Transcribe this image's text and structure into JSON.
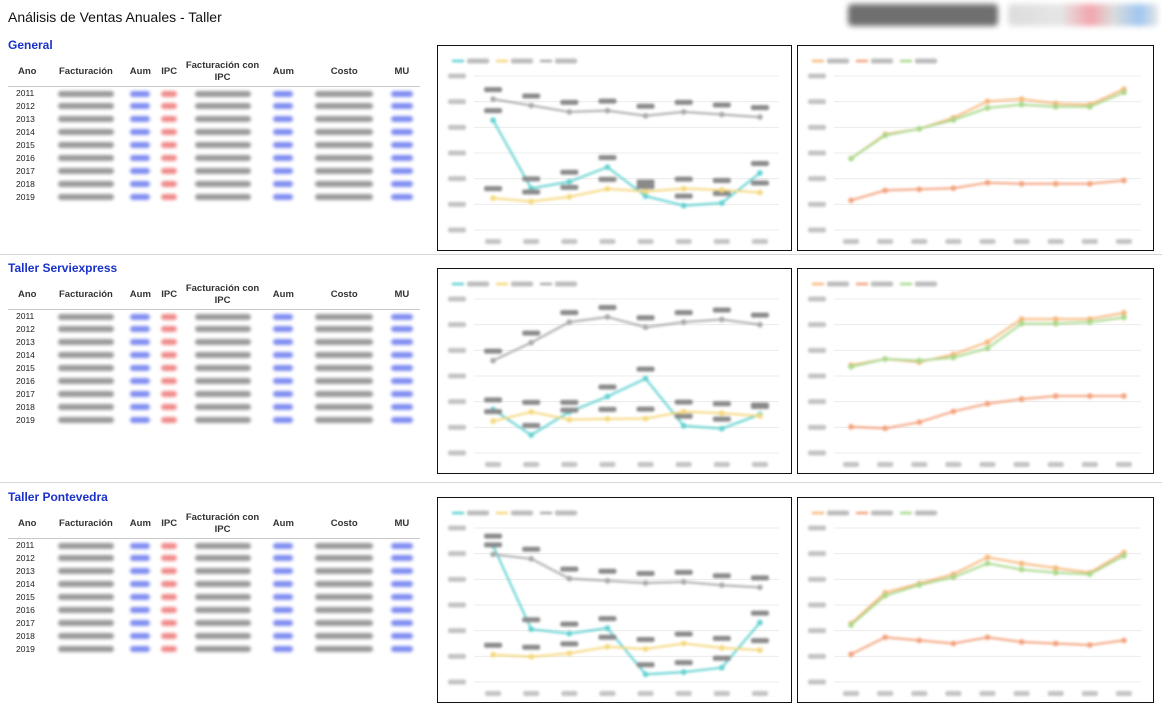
{
  "page": {
    "title": "Análisis de Ventas Anuales - Taller"
  },
  "table_headers": {
    "year": "Ano",
    "facturacion": "Facturación",
    "aum": "Aum",
    "ipc": "IPC",
    "facturacion_ipc": "Facturación con IPC",
    "aum2": "Aum",
    "costo": "Costo",
    "mu": "MU"
  },
  "sections": [
    {
      "title": "General",
      "years": [
        "2011",
        "2012",
        "2013",
        "2014",
        "2015",
        "2016",
        "2017",
        "2018",
        "2019"
      ],
      "chart_data": [
        {
          "type": "line",
          "x": [
            "2012",
            "2013",
            "2014",
            "2015",
            "2016",
            "2017",
            "2018",
            "2019"
          ],
          "series": [
            {
              "key": "aumento",
              "color": "#5fd0d0",
              "values": [
                32.8,
                6.2,
                8.8,
                14.5,
                3.2,
                -0.5,
                0.5,
                12.2
              ]
            },
            {
              "key": "ipc",
              "color": "#f5d77a",
              "values": [
                2.4,
                1.1,
                2.9,
                6.0,
                5.0,
                6.1,
                5.6,
                4.6
              ]
            },
            {
              "key": "mu",
              "color": "#a8a8a8",
              "values": [
                41.0,
                38.5,
                36.0,
                36.5,
                34.5,
                36.0,
                35.0,
                34.0
              ]
            }
          ],
          "ylim": [
            -10,
            50
          ]
        },
        {
          "type": "line",
          "x": [
            "2011",
            "2012",
            "2013",
            "2014",
            "2015",
            "2016",
            "2017",
            "2018",
            "2019"
          ],
          "series": [
            {
              "key": "facturacion",
              "color": "#f7b77a",
              "values": [
                6500,
                8700,
                9200,
                10200,
                11700,
                11900,
                11500,
                11400,
                12800
              ]
            },
            {
              "key": "diferencia",
              "color": "#f3a07a",
              "values": [
                2700,
                3600,
                3700,
                3800,
                4300,
                4200,
                4200,
                4200,
                4500
              ]
            },
            {
              "key": "facturacion_ipc",
              "color": "#a8d88a",
              "values": [
                6500,
                8600,
                9200,
                10000,
                11100,
                11400,
                11200,
                11200,
                12500
              ]
            }
          ],
          "ylim": [
            0,
            14000
          ]
        }
      ]
    },
    {
      "title": "Taller Serviexpress",
      "years": [
        "2011",
        "2012",
        "2013",
        "2014",
        "2015",
        "2016",
        "2017",
        "2018",
        "2019"
      ],
      "chart_data": [
        {
          "type": "line",
          "x": [
            "2012",
            "2013",
            "2014",
            "2015",
            "2016",
            "2017",
            "2018",
            "2019"
          ],
          "series": [
            {
              "key": "aumento",
              "color": "#5fd0d0",
              "values": [
                7.0,
                -3.0,
                6.0,
                12.0,
                19.0,
                0.6,
                -0.5,
                5.0
              ]
            },
            {
              "key": "ipc",
              "color": "#f5d77a",
              "values": [
                2.4,
                6.0,
                3.0,
                3.3,
                3.4,
                6.1,
                5.5,
                4.4
              ]
            },
            {
              "key": "mu",
              "color": "#a8a8a8",
              "values": [
                26.0,
                33.0,
                41.0,
                43.0,
                39.0,
                41.0,
                42.0,
                40.0
              ]
            }
          ],
          "ylim": [
            -10,
            50
          ]
        },
        {
          "type": "line",
          "x": [
            "2011",
            "2012",
            "2013",
            "2014",
            "2015",
            "2016",
            "2017",
            "2018",
            "2019"
          ],
          "series": [
            {
              "key": "facturacion",
              "color": "#f7b77a",
              "values": [
                2850,
                3050,
                2950,
                3200,
                3600,
                4350,
                4350,
                4350,
                4550
              ]
            },
            {
              "key": "diferencia",
              "color": "#f3a07a",
              "values": [
                850,
                800,
                1000,
                1350,
                1600,
                1750,
                1850,
                1850,
                1850
              ]
            },
            {
              "key": "facturacion_ipc",
              "color": "#a8d88a",
              "values": [
                2800,
                3050,
                3000,
                3100,
                3400,
                4200,
                4200,
                4250,
                4400
              ]
            }
          ],
          "ylim": [
            0,
            5000
          ]
        }
      ]
    },
    {
      "title": "Taller Pontevedra",
      "years": [
        "2011",
        "2012",
        "2013",
        "2014",
        "2015",
        "2016",
        "2017",
        "2018",
        "2019"
      ],
      "chart_data": [
        {
          "type": "line",
          "x": [
            "2012",
            "2013",
            "2014",
            "2015",
            "2016",
            "2017",
            "2018",
            "2019"
          ],
          "series": [
            {
              "key": "aumento",
              "color": "#5fd0d0",
              "values": [
                52.0,
                14.0,
                12.0,
                14.5,
                -6.5,
                -5.5,
                -3.5,
                17.0
              ]
            },
            {
              "key": "ipc",
              "color": "#f5d77a",
              "values": [
                2.4,
                1.5,
                3.0,
                6.0,
                5.0,
                7.5,
                5.5,
                4.5
              ]
            },
            {
              "key": "mu",
              "color": "#a8a8a8",
              "values": [
                48.0,
                46.0,
                37.0,
                36.0,
                35.0,
                35.5,
                34.0,
                33.0
              ]
            }
          ],
          "ylim": [
            -10,
            60
          ]
        },
        {
          "type": "line",
          "x": [
            "2011",
            "2012",
            "2013",
            "2014",
            "2015",
            "2016",
            "2017",
            "2018",
            "2019"
          ],
          "series": [
            {
              "key": "facturacion",
              "color": "#f7b77a",
              "values": [
                3800,
                5800,
                6400,
                7000,
                8100,
                7700,
                7400,
                7100,
                8400
              ]
            },
            {
              "key": "diferencia",
              "color": "#f3a07a",
              "values": [
                1800,
                2900,
                2700,
                2500,
                2900,
                2600,
                2500,
                2400,
                2700
              ]
            },
            {
              "key": "facturacion_ipc",
              "color": "#a8d88a",
              "values": [
                3700,
                5600,
                6300,
                6800,
                7700,
                7300,
                7100,
                7000,
                8200
              ]
            }
          ],
          "ylim": [
            0,
            10000
          ]
        }
      ]
    }
  ]
}
